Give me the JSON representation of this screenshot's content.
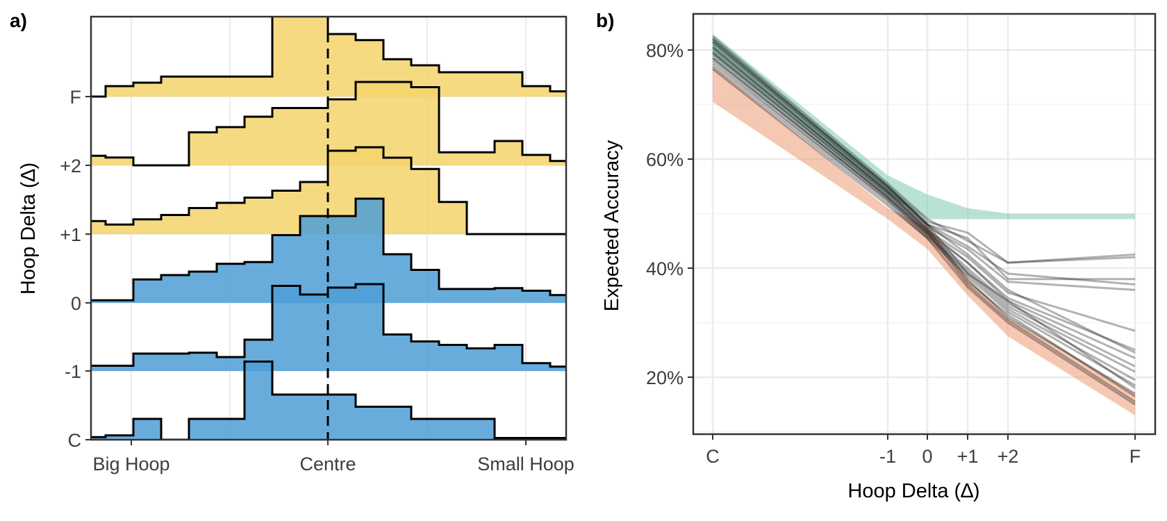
{
  "chart_data": [
    {
      "panel": "a)",
      "type": "histogram-ridgeline",
      "title": "",
      "xlabel": "",
      "ylabel": "Hoop Delta (∆)",
      "xticks": [
        "Big Hoop",
        "Centre",
        "Small Hoop"
      ],
      "xlim": [
        -12,
        18
      ],
      "bin_width": 1,
      "centre_line_x": 0,
      "grid": true,
      "rows": [
        {
          "label": "C",
          "color": "#4d9ed6",
          "bins": [
            [
              -15,
              -14,
              0.02
            ],
            [
              -14,
              -10,
              0.01
            ],
            [
              -10,
              -8,
              0.03
            ],
            [
              -8,
              -7,
              0.05
            ],
            [
              -7,
              -6,
              0.24
            ],
            [
              -6,
              -5,
              0.0
            ],
            [
              -5,
              -4,
              0.24
            ],
            [
              -4,
              -3,
              0.24
            ],
            [
              -3,
              -2,
              0.9
            ],
            [
              -2,
              -1,
              0.52
            ],
            [
              -1,
              0,
              0.52
            ],
            [
              0,
              1,
              0.52
            ],
            [
              1,
              2,
              0.38
            ],
            [
              2,
              3,
              0.38
            ],
            [
              3,
              4,
              0.24
            ],
            [
              4,
              5,
              0.24
            ],
            [
              5,
              6,
              0.24
            ],
            [
              6,
              7,
              0.02
            ],
            [
              7,
              8,
              0.02
            ],
            [
              8,
              9,
              0.02
            ],
            [
              9,
              10,
              0.02
            ]
          ]
        },
        {
          "label": "-1",
          "color": "#4d9ed6",
          "bins": [
            [
              -14,
              -12,
              0.01
            ],
            [
              -12,
              -9,
              0.02
            ],
            [
              -9,
              -7,
              0.06
            ],
            [
              -7,
              -5,
              0.2
            ],
            [
              -5,
              -4,
              0.21
            ],
            [
              -4,
              -3,
              0.16
            ],
            [
              -3,
              -2,
              0.36
            ],
            [
              -2,
              -1,
              0.98
            ],
            [
              -1,
              0,
              0.88
            ],
            [
              0,
              1,
              0.96
            ],
            [
              1,
              2,
              1.0
            ],
            [
              2,
              3,
              0.42
            ],
            [
              3,
              4,
              0.34
            ],
            [
              4,
              5,
              0.3
            ],
            [
              5,
              6,
              0.26
            ],
            [
              6,
              7,
              0.3
            ],
            [
              7,
              8,
              0.09
            ],
            [
              8,
              9,
              0.05
            ],
            [
              9,
              10,
              0.02
            ],
            [
              10,
              12,
              0.01
            ]
          ]
        },
        {
          "label": "0",
          "color": "#4d9ed6",
          "bins": [
            [
              -12,
              -11,
              0.0
            ],
            [
              -11,
              -9,
              0.02
            ],
            [
              -9,
              -7,
              0.03
            ],
            [
              -7,
              -6,
              0.27
            ],
            [
              -6,
              -5,
              0.32
            ],
            [
              -5,
              -4,
              0.36
            ],
            [
              -4,
              -3,
              0.45
            ],
            [
              -3,
              -2,
              0.47
            ],
            [
              -2,
              -1,
              0.78
            ],
            [
              -1,
              0,
              1.0
            ],
            [
              0,
              1,
              1.0
            ],
            [
              1,
              2,
              1.2
            ],
            [
              2,
              3,
              0.56
            ],
            [
              3,
              4,
              0.38
            ],
            [
              4,
              5,
              0.16
            ],
            [
              5,
              6,
              0.16
            ],
            [
              6,
              7,
              0.17
            ],
            [
              7,
              8,
              0.14
            ],
            [
              8,
              9,
              0.09
            ],
            [
              9,
              10,
              0.0
            ]
          ]
        },
        {
          "label": "+1",
          "color": "#f5d36b",
          "bins": [
            [
              -12,
              -11,
              0.0
            ],
            [
              -11,
              -10,
              0.0
            ],
            [
              -10,
              -9,
              0.15
            ],
            [
              -9,
              -8,
              0.15
            ],
            [
              -8,
              -7,
              0.11
            ],
            [
              -7,
              -6,
              0.17
            ],
            [
              -6,
              -5,
              0.22
            ],
            [
              -5,
              -4,
              0.3
            ],
            [
              -4,
              -3,
              0.36
            ],
            [
              -3,
              -2,
              0.42
            ],
            [
              -2,
              -1,
              0.5
            ],
            [
              -1,
              0,
              0.6
            ],
            [
              0,
              1,
              0.96
            ],
            [
              1,
              2,
              1.0
            ],
            [
              2,
              3,
              0.88
            ],
            [
              3,
              4,
              0.75
            ],
            [
              4,
              5,
              0.37
            ],
            [
              5,
              6,
              0.0
            ],
            [
              6,
              7,
              0.0
            ],
            [
              7,
              8,
              0.0
            ],
            [
              8,
              9,
              0.0
            ],
            [
              9,
              10,
              0.0
            ]
          ]
        },
        {
          "label": "+2",
          "color": "#f5d36b",
          "bins": [
            [
              -12,
              -11,
              0.0
            ],
            [
              -11,
              -10,
              0.0
            ],
            [
              -10,
              -9,
              0.15
            ],
            [
              -9,
              -8,
              0.11
            ],
            [
              -8,
              -7,
              0.09
            ],
            [
              -7,
              -6,
              0.0
            ],
            [
              -6,
              -5,
              0.0
            ],
            [
              -5,
              -4,
              0.38
            ],
            [
              -4,
              -3,
              0.44
            ],
            [
              -3,
              -2,
              0.56
            ],
            [
              -2,
              -1,
              0.66
            ],
            [
              -1,
              0,
              0.66
            ],
            [
              0,
              1,
              0.76
            ],
            [
              1,
              2,
              0.96
            ],
            [
              2,
              3,
              0.96
            ],
            [
              3,
              4,
              0.9
            ],
            [
              4,
              5,
              0.15
            ],
            [
              5,
              6,
              0.15
            ],
            [
              6,
              7,
              0.28
            ],
            [
              7,
              8,
              0.12
            ],
            [
              8,
              9,
              0.05
            ],
            [
              9,
              10,
              0.05
            ]
          ]
        },
        {
          "label": "F",
          "color": "#f5d36b",
          "bins": [
            [
              -15,
              -13,
              0.0
            ],
            [
              -13,
              -11,
              0.02
            ],
            [
              -11,
              -10,
              0.07
            ],
            [
              -10,
              -9,
              0.03
            ],
            [
              -9,
              -8,
              0.0
            ],
            [
              -8,
              -7,
              0.12
            ],
            [
              -7,
              -6,
              0.16
            ],
            [
              -6,
              -5,
              0.23
            ],
            [
              -5,
              -4,
              0.23
            ],
            [
              -4,
              -3,
              0.23
            ],
            [
              -3,
              -2,
              0.23
            ],
            [
              -2,
              -1,
              1.2
            ],
            [
              -1,
              0,
              1.2
            ],
            [
              0,
              1,
              0.72
            ],
            [
              1,
              2,
              0.65
            ],
            [
              2,
              3,
              0.43
            ],
            [
              3,
              4,
              0.36
            ],
            [
              4,
              5,
              0.28
            ],
            [
              5,
              6,
              0.28
            ],
            [
              6,
              7,
              0.28
            ],
            [
              7,
              8,
              0.12
            ],
            [
              8,
              9,
              0.06
            ],
            [
              9,
              10,
              0.02
            ]
          ]
        }
      ]
    },
    {
      "panel": "b)",
      "type": "line",
      "title": "",
      "xlabel": "Hoop Delta (∆)",
      "ylabel": "Expected Accuracy",
      "x": [
        -3.5,
        -1,
        0,
        1,
        2,
        5
      ],
      "xtick_labels": [
        "C",
        "-1",
        "0",
        "+1",
        "+2",
        "F"
      ],
      "ylim": [
        10,
        84
      ],
      "yticks": [
        20,
        40,
        60,
        80
      ],
      "ytick_labels": [
        "20%",
        "40%",
        "60%",
        "80%"
      ],
      "grid": true,
      "bands": [
        {
          "color": "#80cbaf",
          "opacity": 0.55,
          "lower": [
            79,
            53.5,
            49,
            49,
            49,
            49
          ],
          "upper": [
            83,
            57,
            53.5,
            51,
            50,
            50
          ]
        },
        {
          "color": "#eb9b74",
          "opacity": 0.55,
          "lower": [
            70.5,
            49,
            43.5,
            35,
            27.5,
            13
          ],
          "upper": [
            77,
            51,
            47.5,
            38,
            31,
            17
          ]
        }
      ],
      "lines_color": "#000000",
      "lines_opacity": 0.3,
      "lines": [
        [
          82.5,
          55.5,
          49.0,
          45.0,
          41.0,
          42.0
        ],
        [
          82.0,
          55.0,
          48.5,
          46.5,
          41.0,
          42.5
        ],
        [
          81.5,
          55.0,
          48.0,
          45.5,
          38.0,
          38.0
        ],
        [
          81.0,
          54.5,
          48.0,
          44.0,
          39.0,
          37.0
        ],
        [
          80.5,
          54.0,
          47.5,
          43.5,
          37.5,
          36.0
        ],
        [
          80.0,
          54.0,
          47.0,
          42.0,
          35.5,
          28.5
        ],
        [
          79.5,
          53.5,
          47.0,
          41.0,
          34.5,
          25.0
        ],
        [
          79.0,
          53.0,
          46.5,
          41.0,
          34.0,
          23.5
        ],
        [
          78.5,
          53.0,
          46.5,
          40.0,
          33.5,
          22.0
        ],
        [
          78.0,
          52.5,
          46.0,
          39.5,
          33.0,
          21.0
        ],
        [
          77.5,
          52.5,
          46.0,
          39.0,
          32.5,
          19.5
        ],
        [
          77.0,
          52.0,
          45.5,
          38.5,
          32.0,
          18.5
        ],
        [
          80.5,
          54.0,
          47.5,
          38.0,
          31.0,
          17.0
        ],
        [
          79.5,
          53.5,
          47.0,
          37.5,
          31.5,
          16.5
        ],
        [
          78.5,
          53.0,
          46.5,
          37.0,
          30.5,
          15.5
        ],
        [
          76.5,
          51.5,
          45.5,
          36.5,
          30.0,
          15.0
        ],
        [
          81.5,
          54.5,
          48.0,
          39.0,
          34.0,
          18.0
        ],
        [
          82.0,
          55.0,
          48.0,
          42.5,
          36.0,
          24.5
        ]
      ]
    }
  ]
}
